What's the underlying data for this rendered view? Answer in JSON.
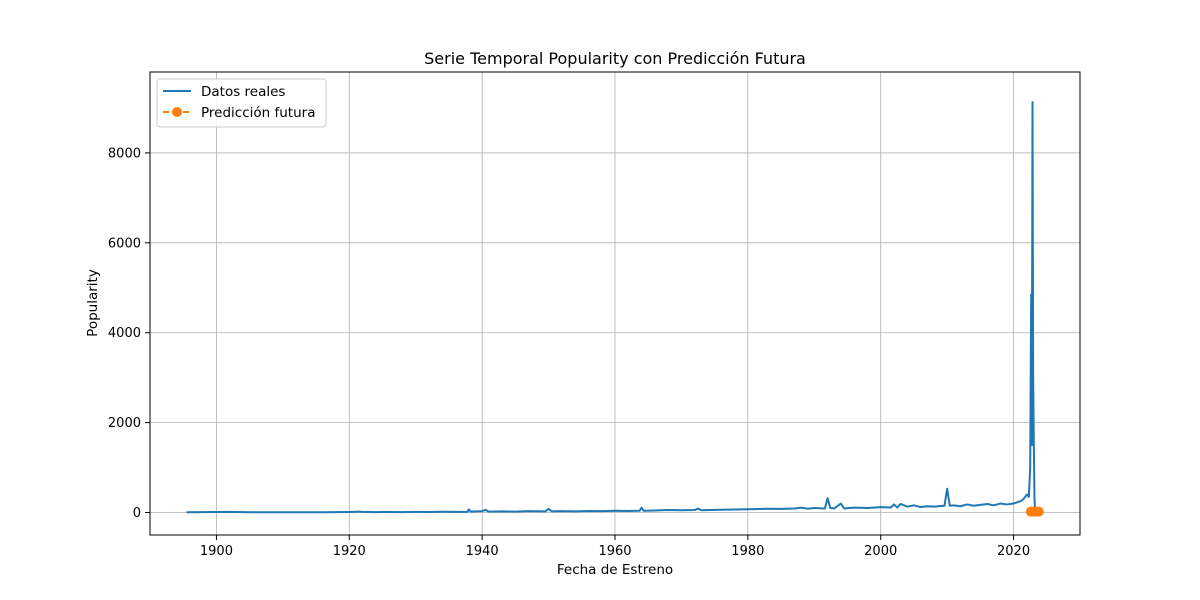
{
  "chart_data": {
    "type": "line",
    "title": "Serie Temporal Popularity con Predicción Futura",
    "xlabel": "Fecha de Estreno",
    "ylabel": "Popularity",
    "xlim": [
      1890,
      2030
    ],
    "ylim": [
      -500,
      9800
    ],
    "x_ticks": [
      1900,
      1920,
      1940,
      1960,
      1980,
      2000,
      2020
    ],
    "y_ticks": [
      0,
      2000,
      4000,
      6000,
      8000
    ],
    "grid": true,
    "legend_position": "top-left",
    "series": [
      {
        "name": "Datos reales",
        "color": "#1f77b4",
        "style": "solid",
        "points": [
          [
            1895.5,
            5
          ],
          [
            1898,
            8
          ],
          [
            1900,
            12
          ],
          [
            1902,
            15
          ],
          [
            1904,
            8
          ],
          [
            1906,
            6
          ],
          [
            1908,
            7
          ],
          [
            1910,
            6
          ],
          [
            1912,
            5
          ],
          [
            1914,
            6
          ],
          [
            1916,
            7
          ],
          [
            1918,
            8
          ],
          [
            1920,
            12
          ],
          [
            1921.5,
            20
          ],
          [
            1922,
            14
          ],
          [
            1924,
            10
          ],
          [
            1926,
            12
          ],
          [
            1928,
            10
          ],
          [
            1930,
            14
          ],
          [
            1932,
            12
          ],
          [
            1934,
            16
          ],
          [
            1936,
            14
          ],
          [
            1937.8,
            15
          ],
          [
            1938,
            70
          ],
          [
            1938.3,
            20
          ],
          [
            1940,
            30
          ],
          [
            1940.5,
            60
          ],
          [
            1941,
            20
          ],
          [
            1943,
            25
          ],
          [
            1945,
            20
          ],
          [
            1947,
            30
          ],
          [
            1949.5,
            25
          ],
          [
            1950,
            80
          ],
          [
            1950.5,
            25
          ],
          [
            1952,
            30
          ],
          [
            1954,
            25
          ],
          [
            1956,
            35
          ],
          [
            1958,
            30
          ],
          [
            1960,
            40
          ],
          [
            1962,
            35
          ],
          [
            1963.7,
            40
          ],
          [
            1964,
            110
          ],
          [
            1964.3,
            40
          ],
          [
            1966,
            45
          ],
          [
            1968,
            55
          ],
          [
            1970,
            50
          ],
          [
            1972,
            55
          ],
          [
            1972.5,
            90
          ],
          [
            1973,
            50
          ],
          [
            1975,
            60
          ],
          [
            1977,
            65
          ],
          [
            1979,
            70
          ],
          [
            1981,
            75
          ],
          [
            1983,
            85
          ],
          [
            1985,
            80
          ],
          [
            1987,
            90
          ],
          [
            1988,
            110
          ],
          [
            1989,
            85
          ],
          [
            1990,
            100
          ],
          [
            1991.6,
            90
          ],
          [
            1992,
            320
          ],
          [
            1992.4,
            100
          ],
          [
            1993,
            90
          ],
          [
            1994,
            200
          ],
          [
            1994.5,
            90
          ],
          [
            1996,
            110
          ],
          [
            1998,
            100
          ],
          [
            2000,
            120
          ],
          [
            2001.5,
            110
          ],
          [
            2002,
            180
          ],
          [
            2002.5,
            110
          ],
          [
            2003,
            190
          ],
          [
            2004,
            130
          ],
          [
            2005,
            160
          ],
          [
            2006,
            120
          ],
          [
            2007,
            140
          ],
          [
            2008,
            130
          ],
          [
            2009.6,
            150
          ],
          [
            2010,
            530
          ],
          [
            2010.4,
            150
          ],
          [
            2011,
            160
          ],
          [
            2012,
            140
          ],
          [
            2013,
            180
          ],
          [
            2014,
            150
          ],
          [
            2015,
            170
          ],
          [
            2016,
            190
          ],
          [
            2017,
            160
          ],
          [
            2018,
            200
          ],
          [
            2019,
            180
          ],
          [
            2020,
            200
          ],
          [
            2021,
            250
          ],
          [
            2021.5,
            300
          ],
          [
            2022,
            400
          ],
          [
            2022.3,
            350
          ],
          [
            2022.5,
            1000
          ],
          [
            2022.65,
            4850
          ],
          [
            2022.75,
            1500
          ],
          [
            2022.85,
            9130
          ],
          [
            2022.95,
            3000
          ],
          [
            2023.05,
            1500
          ],
          [
            2023.15,
            300
          ],
          [
            2023.25,
            0
          ]
        ]
      },
      {
        "name": "Predicción futura",
        "color": "#ff7f0e",
        "style": "dashed",
        "marker": "circle",
        "points": [
          [
            2022.6,
            20
          ],
          [
            2022.8,
            20
          ],
          [
            2023.0,
            20
          ],
          [
            2023.2,
            20
          ],
          [
            2023.4,
            20
          ],
          [
            2023.6,
            20
          ],
          [
            2023.8,
            20
          ]
        ]
      }
    ]
  }
}
